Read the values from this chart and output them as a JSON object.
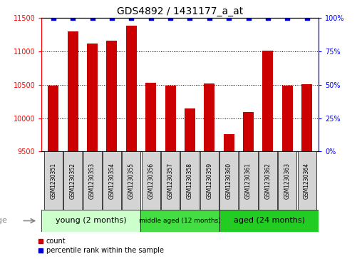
{
  "title": "GDS4892 / 1431177_a_at",
  "samples": [
    "GSM1230351",
    "GSM1230352",
    "GSM1230353",
    "GSM1230354",
    "GSM1230355",
    "GSM1230356",
    "GSM1230357",
    "GSM1230358",
    "GSM1230359",
    "GSM1230360",
    "GSM1230361",
    "GSM1230362",
    "GSM1230363",
    "GSM1230364"
  ],
  "counts": [
    10490,
    11300,
    11120,
    11160,
    11390,
    10530,
    10490,
    10150,
    10520,
    9760,
    10090,
    11010,
    10490,
    10510
  ],
  "percentiles": [
    100,
    100,
    100,
    100,
    100,
    100,
    100,
    100,
    100,
    100,
    100,
    100,
    100,
    100
  ],
  "ylim_left": [
    9500,
    11500
  ],
  "ylim_right": [
    0,
    100
  ],
  "yticks_left": [
    9500,
    10000,
    10500,
    11000,
    11500
  ],
  "yticks_right": [
    0,
    25,
    50,
    75,
    100
  ],
  "bar_color": "#cc0000",
  "dot_color": "#0000cc",
  "dot_size": 20,
  "background_color": "#ffffff",
  "groups": [
    {
      "label": "young (2 months)",
      "start": 0,
      "end": 5,
      "color": "#ccffcc"
    },
    {
      "label": "middle aged (12 months)",
      "start": 5,
      "end": 9,
      "color": "#44dd44"
    },
    {
      "label": "aged (24 months)",
      "start": 9,
      "end": 14,
      "color": "#22cc22"
    }
  ],
  "sample_box_color": "#d4d4d4",
  "group_row_label": "age",
  "legend_count_label": "count",
  "legend_percentile_label": "percentile rank within the sample",
  "title_fontsize": 10,
  "tick_fontsize": 7,
  "sample_fontsize": 5.5,
  "group_fontsize_large": 8,
  "group_fontsize_small": 6.5,
  "legend_fontsize": 7
}
